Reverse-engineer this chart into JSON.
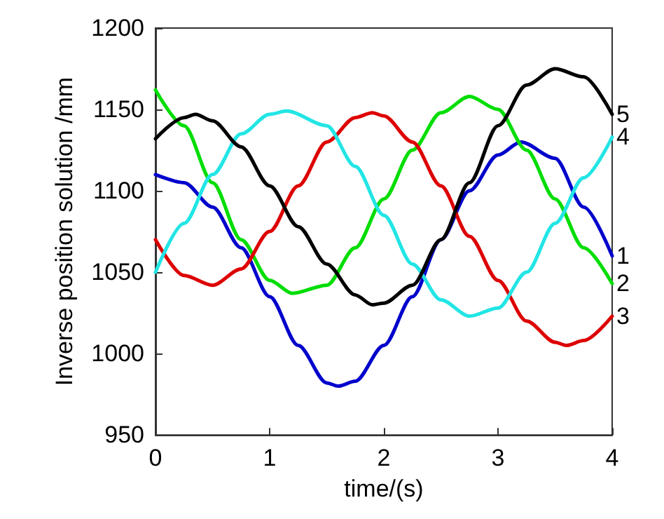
{
  "chart_data": {
    "type": "line",
    "xlabel": "time/(s)",
    "ylabel": "Inverse position solution /mm",
    "xlim": [
      0,
      4
    ],
    "xticks": [
      0,
      1,
      2,
      3,
      4
    ],
    "ylim": [
      950,
      1200
    ],
    "yticks": [
      950,
      1000,
      1050,
      1100,
      1150,
      1200
    ],
    "grid": false,
    "legend": false,
    "marker": "none",
    "line_style": "solid",
    "series": [
      {
        "name": "1",
        "color": "#0000cc",
        "x": [
          0,
          0.25,
          0.5,
          0.75,
          1,
          1.25,
          1.5,
          1.6,
          1.75,
          2,
          2.25,
          2.5,
          2.75,
          3,
          3.2,
          3.5,
          3.75,
          4
        ],
        "values": [
          1110,
          1105,
          1090,
          1065,
          1035,
          1005,
          982,
          980,
          983,
          1005,
          1035,
          1070,
          1100,
          1122,
          1130,
          1120,
          1090,
          1060
        ]
      },
      {
        "name": "2",
        "color": "#00dd00",
        "x": [
          0,
          0.25,
          0.5,
          0.75,
          1,
          1.2,
          1.5,
          1.75,
          2,
          2.25,
          2.5,
          2.75,
          3,
          3.25,
          3.5,
          3.75,
          4
        ],
        "values": [
          1162,
          1140,
          1105,
          1070,
          1045,
          1037,
          1042,
          1065,
          1095,
          1125,
          1148,
          1158,
          1150,
          1125,
          1095,
          1065,
          1043
        ]
      },
      {
        "name": "3",
        "color": "#dd0000",
        "x": [
          0,
          0.25,
          0.5,
          0.75,
          1,
          1.25,
          1.5,
          1.75,
          1.9,
          2,
          2.25,
          2.5,
          2.75,
          3,
          3.25,
          3.5,
          3.6,
          3.75,
          4
        ],
        "values": [
          1070,
          1048,
          1042,
          1052,
          1075,
          1103,
          1130,
          1145,
          1148,
          1146,
          1130,
          1103,
          1072,
          1045,
          1020,
          1007,
          1005,
          1008,
          1023
        ]
      },
      {
        "name": "4",
        "color": "#22e5e5",
        "x": [
          0,
          0.25,
          0.5,
          0.75,
          1,
          1.15,
          1.5,
          1.75,
          2,
          2.25,
          2.5,
          2.75,
          3,
          3.25,
          3.5,
          3.75,
          4
        ],
        "values": [
          1050,
          1080,
          1110,
          1135,
          1147,
          1149,
          1140,
          1115,
          1085,
          1055,
          1033,
          1023,
          1028,
          1050,
          1080,
          1108,
          1133
        ]
      },
      {
        "name": "5",
        "color": "#000000",
        "x": [
          0,
          0.25,
          0.35,
          0.5,
          0.75,
          1,
          1.25,
          1.5,
          1.75,
          1.9,
          2,
          2.25,
          2.5,
          2.75,
          3,
          3.25,
          3.5,
          3.75,
          4
        ],
        "values": [
          1132,
          1145,
          1147,
          1143,
          1127,
          1103,
          1078,
          1055,
          1036,
          1030,
          1031,
          1042,
          1070,
          1105,
          1140,
          1165,
          1175,
          1170,
          1147
        ]
      }
    ]
  }
}
